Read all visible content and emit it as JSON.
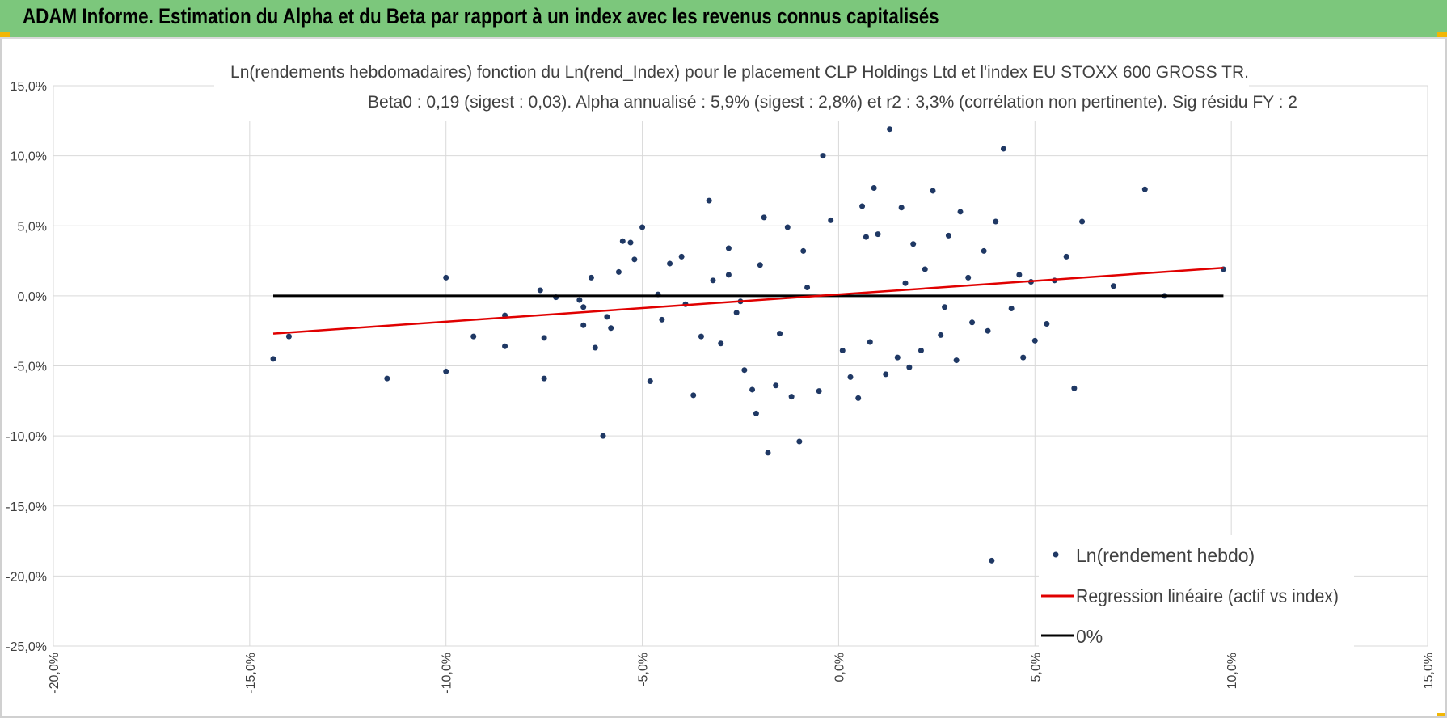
{
  "header": {
    "title": "ADAM Informe. Estimation du Alpha et du Beta par rapport à un index avec les revenus connus capitalisés"
  },
  "colors": {
    "header_bg": "#7cc77c",
    "points": "#1f3864",
    "regression": "#e00000",
    "zero_line": "#000000",
    "grid": "#d9d9d9"
  },
  "chart_data": {
    "type": "scatter",
    "title_line1": "Ln(rendements hebdomadaires) fonction du Ln(rend_Index) pour le placement CLP Holdings Ltd et l'index EU STOXX 600 GROSS TR.",
    "title_line2": "Beta0 : 0,19  (sigest : 0,03). Alpha annualisé : 5,9% (sigest : 2,8%) et r2 : 3,3% (corrélation non pertinente). Sig  résidu FY : 2",
    "xlabel": "",
    "ylabel": "",
    "xlim": [
      -20,
      15
    ],
    "ylim": [
      -25,
      15
    ],
    "x_ticks": [
      -20,
      -15,
      -10,
      -5,
      0,
      5,
      10,
      15
    ],
    "y_ticks": [
      15,
      10,
      5,
      0,
      -5,
      -10,
      -15,
      -20,
      -25
    ],
    "x_tick_labels": [
      "-20,0%",
      "-15,0%",
      "-10,0%",
      "-5,0%",
      "0,0%",
      "5,0%",
      "10,0%",
      "15,0%"
    ],
    "y_tick_labels": [
      "15,0%",
      "10,0%",
      "5,0%",
      "0,0%",
      "-5,0%",
      "-10,0%",
      "-15,0%",
      "-20,0%",
      "-25,0%"
    ],
    "grid": true,
    "legend_position": "bottom-right",
    "series": [
      {
        "name": "Ln(rendement hebdo)",
        "kind": "points",
        "points": [
          [
            -14.4,
            -4.5
          ],
          [
            -14.0,
            -2.9
          ],
          [
            -11.5,
            -5.9
          ],
          [
            -10.0,
            1.3
          ],
          [
            -10.0,
            -5.4
          ],
          [
            -9.3,
            -2.9
          ],
          [
            -8.5,
            -1.4
          ],
          [
            -8.5,
            -3.6
          ],
          [
            -7.6,
            0.4
          ],
          [
            -7.5,
            -3.0
          ],
          [
            -7.5,
            -5.9
          ],
          [
            -7.2,
            -0.1
          ],
          [
            -6.6,
            -0.3
          ],
          [
            -6.5,
            -0.8
          ],
          [
            -6.5,
            -2.1
          ],
          [
            -6.3,
            1.3
          ],
          [
            -6.2,
            -3.7
          ],
          [
            -6.0,
            -10.0
          ],
          [
            -5.9,
            -1.5
          ],
          [
            -5.8,
            -2.3
          ],
          [
            -5.6,
            1.7
          ],
          [
            -5.5,
            3.9
          ],
          [
            -5.3,
            3.8
          ],
          [
            -5.2,
            2.6
          ],
          [
            -5.0,
            4.9
          ],
          [
            -4.8,
            -6.1
          ],
          [
            -4.6,
            0.1
          ],
          [
            -4.5,
            -1.7
          ],
          [
            -4.3,
            2.3
          ],
          [
            -4.0,
            2.8
          ],
          [
            -3.9,
            -0.6
          ],
          [
            -3.7,
            -7.1
          ],
          [
            -3.5,
            -2.9
          ],
          [
            -3.3,
            6.8
          ],
          [
            -3.2,
            1.1
          ],
          [
            -3.0,
            -3.4
          ],
          [
            -2.8,
            3.4
          ],
          [
            -2.6,
            -1.2
          ],
          [
            -2.4,
            -5.3
          ],
          [
            -2.2,
            -6.7
          ],
          [
            -2.1,
            -8.4
          ],
          [
            -1.9,
            5.6
          ],
          [
            -1.8,
            -11.2
          ],
          [
            -1.6,
            -6.4
          ],
          [
            -1.3,
            4.9
          ],
          [
            -1.2,
            -7.2
          ],
          [
            -1.0,
            -10.4
          ],
          [
            -0.9,
            3.2
          ],
          [
            -0.5,
            -6.8
          ],
          [
            -0.4,
            10.0
          ],
          [
            -0.2,
            5.4
          ],
          [
            0.1,
            -3.9
          ],
          [
            0.3,
            -5.8
          ],
          [
            0.5,
            -7.3
          ],
          [
            0.6,
            6.4
          ],
          [
            0.7,
            4.2
          ],
          [
            0.8,
            -3.3
          ],
          [
            0.9,
            7.7
          ],
          [
            1.0,
            4.4
          ],
          [
            1.2,
            -5.6
          ],
          [
            1.3,
            11.9
          ],
          [
            1.5,
            -4.4
          ],
          [
            1.6,
            6.3
          ],
          [
            1.8,
            -5.1
          ],
          [
            1.9,
            3.7
          ],
          [
            2.1,
            -3.9
          ],
          [
            2.4,
            7.5
          ],
          [
            2.6,
            -2.8
          ],
          [
            2.8,
            4.3
          ],
          [
            3.0,
            -4.6
          ],
          [
            3.1,
            6.0
          ],
          [
            3.4,
            -1.9
          ],
          [
            3.7,
            3.2
          ],
          [
            3.8,
            -2.5
          ],
          [
            3.9,
            -18.9
          ],
          [
            4.0,
            5.3
          ],
          [
            4.2,
            10.5
          ],
          [
            4.4,
            -0.9
          ],
          [
            4.6,
            1.5
          ],
          [
            4.7,
            -4.4
          ],
          [
            4.9,
            1.0
          ],
          [
            5.0,
            -3.2
          ],
          [
            5.3,
            -2.0
          ],
          [
            5.5,
            1.1
          ],
          [
            5.8,
            2.8
          ],
          [
            6.0,
            -6.6
          ],
          [
            6.2,
            5.3
          ],
          [
            7.0,
            0.7
          ],
          [
            7.8,
            7.6
          ],
          [
            8.3,
            0.0
          ],
          [
            9.8,
            1.9
          ],
          [
            -2.8,
            1.5
          ],
          [
            -2.5,
            -0.4
          ],
          [
            -2.0,
            2.2
          ],
          [
            -1.5,
            -2.7
          ],
          [
            -0.8,
            0.6
          ],
          [
            1.7,
            0.9
          ],
          [
            2.2,
            1.9
          ],
          [
            2.7,
            -0.8
          ],
          [
            3.3,
            1.3
          ]
        ]
      },
      {
        "name": "Regression linéaire (actif vs index)",
        "kind": "line",
        "x": [
          -14.4,
          9.8
        ],
        "y": [
          -2.7,
          2.0
        ]
      },
      {
        "name": "0%",
        "kind": "line",
        "x": [
          -14.4,
          9.8
        ],
        "y": [
          0.0,
          0.0
        ]
      }
    ]
  }
}
